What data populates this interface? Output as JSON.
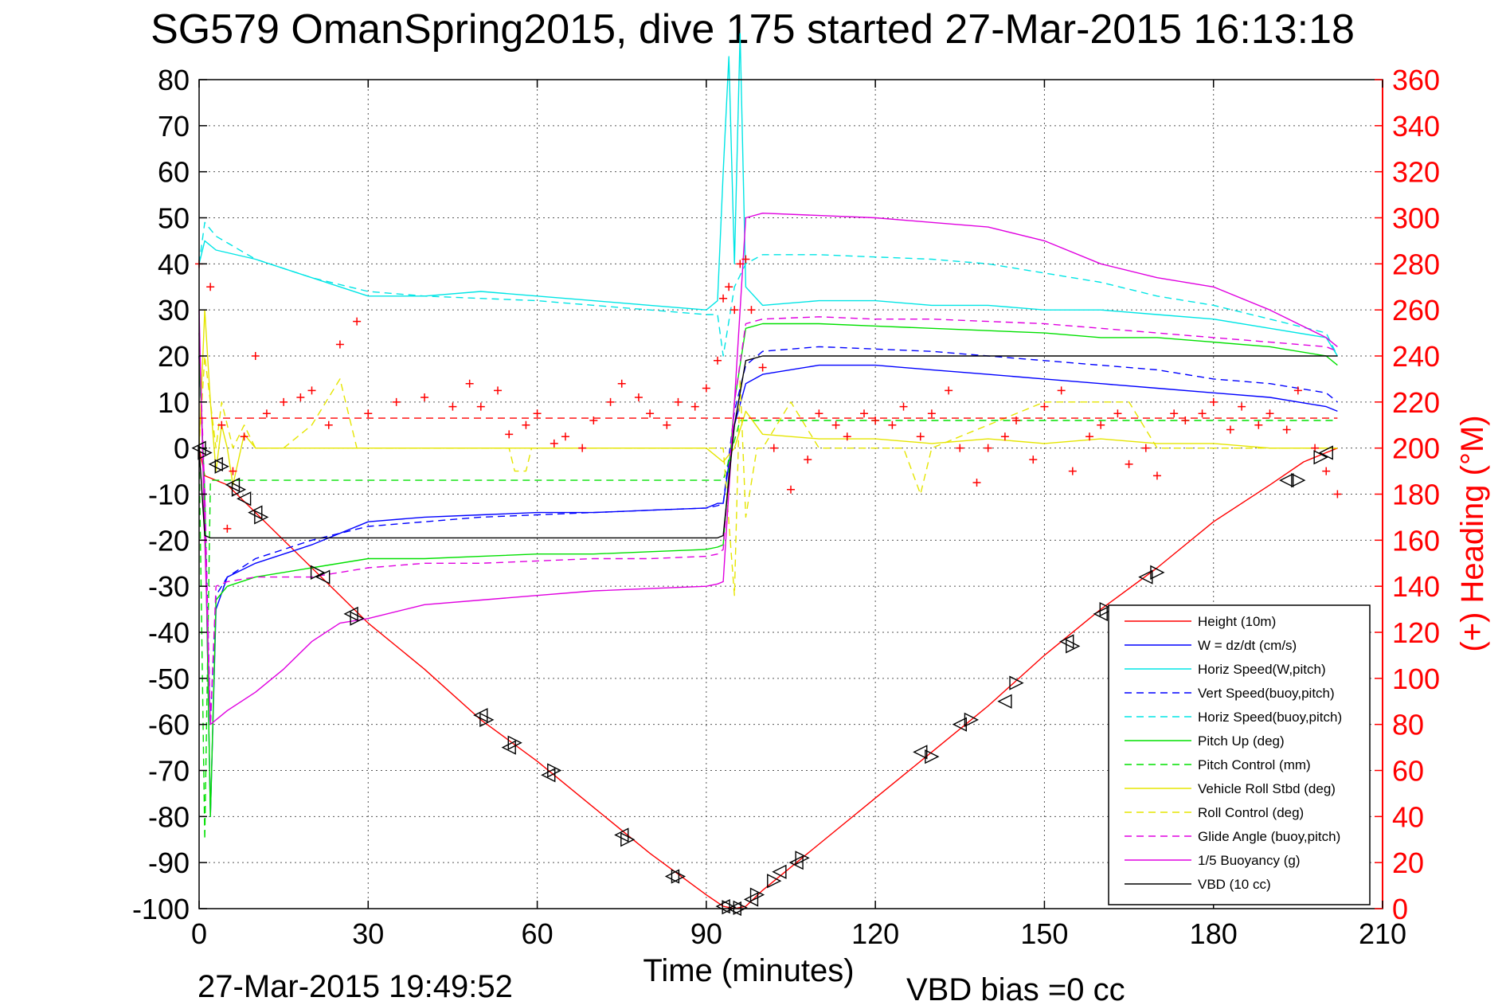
{
  "chart_data": {
    "type": "line",
    "title": "SG579 OmanSpring2015, dive 175 started 27-Mar-2015 16:13:18",
    "xlabel": "Time (minutes)",
    "ylabel": "",
    "y2label": "(+) Heading (°M)",
    "footer_left": "27-Mar-2015 19:49:52",
    "footer_right": "VBD bias =0 cc",
    "xlim": [
      0,
      210
    ],
    "ylim": [
      -100,
      80
    ],
    "y2lim": [
      0,
      360
    ],
    "grid": true,
    "legend_position": "bottom-right",
    "x_ticks": [
      "0",
      "30",
      "60",
      "90",
      "120",
      "150",
      "180",
      "210"
    ],
    "y_ticks": [
      "80",
      "70",
      "60",
      "50",
      "40",
      "30",
      "20",
      "10",
      "0",
      "-10",
      "-20",
      "-30",
      "-40",
      "-50",
      "-60",
      "-70",
      "-80",
      "-90",
      "-100"
    ],
    "y2_ticks": [
      "360",
      "340",
      "320",
      "300",
      "280",
      "260",
      "240",
      "220",
      "200",
      "180",
      "160",
      "140",
      "120",
      "100",
      "80",
      "60",
      "40",
      "20",
      "0"
    ],
    "series": [
      {
        "name": "Height (10m)",
        "color": "#ff0000",
        "dash": "solid",
        "axis": "left",
        "x": [
          0,
          1,
          5,
          10,
          20,
          30,
          40,
          50,
          60,
          70,
          80,
          90,
          93,
          95,
          97,
          100,
          110,
          120,
          130,
          140,
          150,
          160,
          170,
          180,
          190,
          196,
          200,
          202
        ],
        "y": [
          0,
          -6,
          -8,
          -14,
          -26,
          -38,
          -48,
          -59,
          -68,
          -78,
          -88,
          -97,
          -99.5,
          -100,
          -99.5,
          -96,
          -86,
          -76,
          -66,
          -56,
          -45,
          -35,
          -26,
          -16,
          -8,
          -3,
          -1,
          0
        ]
      },
      {
        "name": "W = dz/dt (cm/s)",
        "color": "#0000ff",
        "dash": "solid",
        "axis": "left",
        "x": [
          0,
          1,
          2,
          3,
          5,
          10,
          20,
          30,
          40,
          50,
          60,
          70,
          80,
          90,
          92,
          93,
          95,
          97,
          100,
          110,
          120,
          130,
          140,
          150,
          160,
          170,
          180,
          190,
          200,
          202
        ],
        "y": [
          20,
          -10,
          -80,
          -35,
          -28,
          -25,
          -21,
          -16,
          -15,
          -14.5,
          -14,
          -14,
          -13.5,
          -13,
          -12,
          -12,
          5,
          14,
          16,
          18,
          18,
          17,
          16,
          15,
          14,
          13,
          12,
          11,
          9,
          8
        ]
      },
      {
        "name": "Horiz Speed(W,pitch)",
        "color": "#00e5e5",
        "dash": "solid",
        "axis": "left",
        "x": [
          0,
          1,
          3,
          10,
          20,
          30,
          40,
          50,
          60,
          70,
          80,
          90,
          92,
          93,
          94,
          95,
          96,
          97,
          100,
          110,
          120,
          130,
          140,
          150,
          160,
          170,
          180,
          190,
          200,
          202
        ],
        "y": [
          40,
          45,
          43,
          41,
          37,
          33,
          33,
          34,
          33,
          32,
          31,
          30,
          32,
          60,
          85,
          40,
          90,
          35,
          31,
          32,
          32,
          31,
          31,
          30,
          30,
          29,
          28,
          26,
          24,
          20
        ]
      },
      {
        "name": "Vert Speed(buoy,pitch)",
        "color": "#0000ff",
        "dash": "dashed",
        "axis": "left",
        "x": [
          0,
          1,
          2,
          3,
          5,
          10,
          20,
          30,
          40,
          50,
          60,
          70,
          80,
          90,
          92,
          93,
          95,
          97,
          100,
          110,
          120,
          130,
          140,
          150,
          160,
          170,
          180,
          190,
          200,
          202
        ],
        "y": [
          20,
          -10,
          -60,
          -32,
          -28,
          -24,
          -20,
          -17,
          -16,
          -15,
          -14.5,
          -14,
          -13.5,
          -13,
          -12.5,
          -12,
          8,
          18,
          21,
          22,
          21.5,
          21,
          20,
          19,
          18,
          17,
          15,
          14,
          12,
          10
        ]
      },
      {
        "name": "Horiz Speed(buoy,pitch)",
        "color": "#00e5e5",
        "dash": "dashed",
        "axis": "left",
        "x": [
          0,
          1,
          3,
          10,
          20,
          30,
          40,
          50,
          60,
          70,
          80,
          90,
          92,
          93,
          95,
          97,
          100,
          110,
          120,
          130,
          140,
          150,
          160,
          170,
          180,
          190,
          200,
          202
        ],
        "y": [
          40,
          49,
          46,
          41,
          37,
          34,
          33,
          32.5,
          32,
          31,
          30,
          29,
          29,
          20,
          35,
          40,
          42,
          42,
          41.5,
          41,
          40,
          38,
          36,
          33,
          31,
          28,
          25,
          20
        ]
      },
      {
        "name": "Pitch Up (deg)",
        "color": "#00e000",
        "dash": "solid",
        "axis": "left",
        "x": [
          0,
          1,
          2,
          3,
          5,
          10,
          20,
          30,
          40,
          50,
          60,
          70,
          80,
          90,
          92,
          93,
          95,
          97,
          100,
          110,
          120,
          130,
          140,
          150,
          160,
          170,
          180,
          190,
          200,
          202
        ],
        "y": [
          20,
          -10,
          -80,
          -33,
          -30,
          -28,
          -26,
          -24,
          -24,
          -23.5,
          -23,
          -23,
          -22.5,
          -22,
          -21.5,
          -21,
          10,
          26,
          27,
          27,
          26.5,
          26,
          25.5,
          25,
          24,
          24,
          23,
          22,
          20,
          18
        ]
      },
      {
        "name": "Pitch Control (mm)",
        "color": "#00e000",
        "dash": "dashed",
        "axis": "left",
        "x": [
          0,
          1,
          2,
          3,
          92,
          93,
          96,
          97,
          202
        ],
        "y": [
          0,
          -85,
          -7,
          -7,
          -7,
          -7,
          6,
          6,
          6
        ]
      },
      {
        "name": "Vehicle Roll Stbd (deg)",
        "color": "#e5e500",
        "dash": "solid",
        "axis": "left",
        "x": [
          0,
          1,
          2,
          3,
          4,
          5,
          6,
          8,
          10,
          15,
          20,
          30,
          40,
          50,
          60,
          70,
          80,
          90,
          93,
          95,
          97,
          100,
          110,
          120,
          130,
          140,
          150,
          160,
          170,
          180,
          190,
          200,
          202
        ],
        "y": [
          0,
          30,
          10,
          -5,
          5,
          0,
          -8,
          3,
          0,
          0,
          0,
          0,
          0,
          0,
          0,
          0,
          0,
          0,
          -3,
          0,
          8,
          3,
          2,
          2,
          1,
          2,
          1,
          2,
          1,
          1,
          0,
          0,
          0
        ]
      },
      {
        "name": "Roll Control (deg)",
        "color": "#e5e500",
        "dash": "dashed",
        "axis": "left",
        "x": [
          0,
          1,
          3,
          4,
          6,
          8,
          10,
          15,
          20,
          25,
          28,
          30,
          40,
          55,
          56,
          58,
          59,
          90,
          93,
          95,
          96,
          97,
          99,
          100,
          105,
          110,
          125,
          128,
          130,
          150,
          165,
          170,
          190,
          202
        ],
        "y": [
          0,
          20,
          0,
          10,
          0,
          5,
          0,
          0,
          5,
          15,
          0,
          0,
          0,
          0,
          -5,
          -5,
          0,
          0,
          0,
          -32,
          15,
          -15,
          0,
          0,
          10,
          0,
          0,
          -10,
          0,
          10,
          10,
          0,
          0,
          0
        ]
      },
      {
        "name": "Glide Angle (buoy,pitch)",
        "color": "#e000e0",
        "dash": "dashed",
        "axis": "left",
        "x": [
          0,
          1,
          2,
          3,
          5,
          10,
          20,
          30,
          40,
          50,
          60,
          70,
          80,
          90,
          92,
          93,
          95,
          97,
          100,
          110,
          120,
          130,
          140,
          150,
          160,
          170,
          180,
          190,
          200,
          202
        ],
        "y": [
          25,
          -10,
          -60,
          -30,
          -29,
          -28,
          -28,
          -26,
          -25,
          -25,
          -24.5,
          -24,
          -24,
          -23.5,
          -23,
          -22,
          10,
          27,
          28,
          28.5,
          28,
          28,
          27.5,
          27,
          26,
          25,
          24,
          23,
          22,
          21
        ]
      },
      {
        "name": "1/5 Buoyancy (g)",
        "color": "#e000e0",
        "dash": "solid",
        "axis": "left",
        "x": [
          0,
          1,
          2,
          5,
          10,
          15,
          20,
          25,
          30,
          40,
          50,
          60,
          70,
          80,
          90,
          92,
          93,
          95,
          97,
          100,
          110,
          120,
          130,
          140,
          150,
          160,
          170,
          180,
          190,
          200,
          202
        ],
        "y": [
          30,
          -20,
          -60,
          -57,
          -53,
          -48,
          -42,
          -38,
          -37,
          -34,
          -33,
          -32,
          -31,
          -30.5,
          -30,
          -29.5,
          -29,
          10,
          50,
          51,
          50.5,
          50,
          49,
          48,
          45,
          40,
          37,
          35,
          30,
          24,
          22
        ]
      },
      {
        "name": "VBD (10 cc)",
        "color": "#000000",
        "dash": "solid",
        "axis": "left",
        "x": [
          0,
          1,
          2,
          5,
          30,
          60,
          90,
          92,
          93,
          95,
          97,
          100,
          130,
          160,
          190,
          202
        ],
        "y": [
          0,
          -19,
          -19.5,
          -19.5,
          -19.5,
          -19.5,
          -19.5,
          -19.5,
          -19,
          5,
          19,
          20,
          20,
          20,
          20,
          20
        ]
      },
      {
        "name": "",
        "color": "#ff0000",
        "dash": "dashed",
        "axis": "right",
        "marker": "none",
        "x": [
          0,
          202
        ],
        "y": [
          213,
          213
        ]
      },
      {
        "name": "",
        "color": "#ff0000",
        "dash": "none",
        "axis": "right",
        "marker": "+",
        "x": [
          0,
          2,
          4,
          5,
          6,
          8,
          10,
          12,
          15,
          18,
          20,
          23,
          25,
          28,
          30,
          35,
          40,
          45,
          48,
          50,
          53,
          55,
          58,
          60,
          63,
          65,
          68,
          70,
          73,
          75,
          78,
          80,
          83,
          85,
          88,
          90,
          92,
          93,
          94,
          95,
          96,
          97,
          98,
          100,
          102,
          105,
          108,
          110,
          113,
          115,
          118,
          120,
          123,
          125,
          128,
          130,
          133,
          135,
          138,
          140,
          143,
          145,
          148,
          150,
          153,
          155,
          158,
          160,
          163,
          165,
          168,
          170,
          173,
          175,
          178,
          180,
          183,
          185,
          188,
          190,
          193,
          195,
          198,
          200,
          202
        ],
        "y": [
          280,
          270,
          210,
          165,
          190,
          205,
          240,
          215,
          220,
          222,
          225,
          210,
          245,
          255,
          215,
          220,
          222,
          218,
          228,
          218,
          225,
          206,
          210,
          215,
          202,
          205,
          200,
          212,
          220,
          228,
          222,
          215,
          210,
          220,
          218,
          226,
          238,
          265,
          270,
          260,
          280,
          282,
          260,
          235,
          200,
          182,
          195,
          215,
          210,
          205,
          215,
          212,
          210,
          218,
          205,
          215,
          225,
          200,
          185,
          200,
          205,
          212,
          195,
          218,
          225,
          190,
          205,
          210,
          215,
          193,
          200,
          188,
          215,
          212,
          215,
          220,
          208,
          218,
          210,
          215,
          208,
          225,
          200,
          190,
          180
        ]
      },
      {
        "name": "",
        "color": "#000000",
        "dash": "none",
        "axis": "left",
        "marker": "triangle-left",
        "x": [
          0,
          3,
          6,
          8,
          10,
          22,
          27,
          50,
          55,
          62,
          75,
          84,
          93,
          95,
          98,
          103,
          106,
          128,
          135,
          143,
          154,
          160,
          168,
          193,
          200
        ],
        "y": [
          0,
          -3.5,
          -8,
          -11,
          -14,
          -28,
          -36,
          -58,
          -65,
          -71,
          -84,
          -93,
          -99.5,
          -100,
          -98,
          -92,
          -90,
          -66,
          -60,
          -55,
          -42,
          -36,
          -28,
          -7,
          -1
        ]
      },
      {
        "name": "",
        "color": "#000000",
        "dash": "none",
        "axis": "left",
        "marker": "triangle-right",
        "x": [
          1,
          4,
          7,
          11,
          21,
          28,
          51,
          56,
          63,
          76,
          85,
          94,
          96,
          99,
          102,
          107,
          130,
          137,
          145,
          155,
          161,
          170,
          195,
          199
        ],
        "y": [
          -1,
          -4,
          -9,
          -15,
          -27,
          -37,
          -59,
          -64,
          -70,
          -85,
          -93,
          -99.7,
          -99.8,
          -97,
          -94,
          -89,
          -67,
          -59,
          -51,
          -43,
          -35,
          -27,
          -7,
          -2
        ]
      }
    ]
  }
}
